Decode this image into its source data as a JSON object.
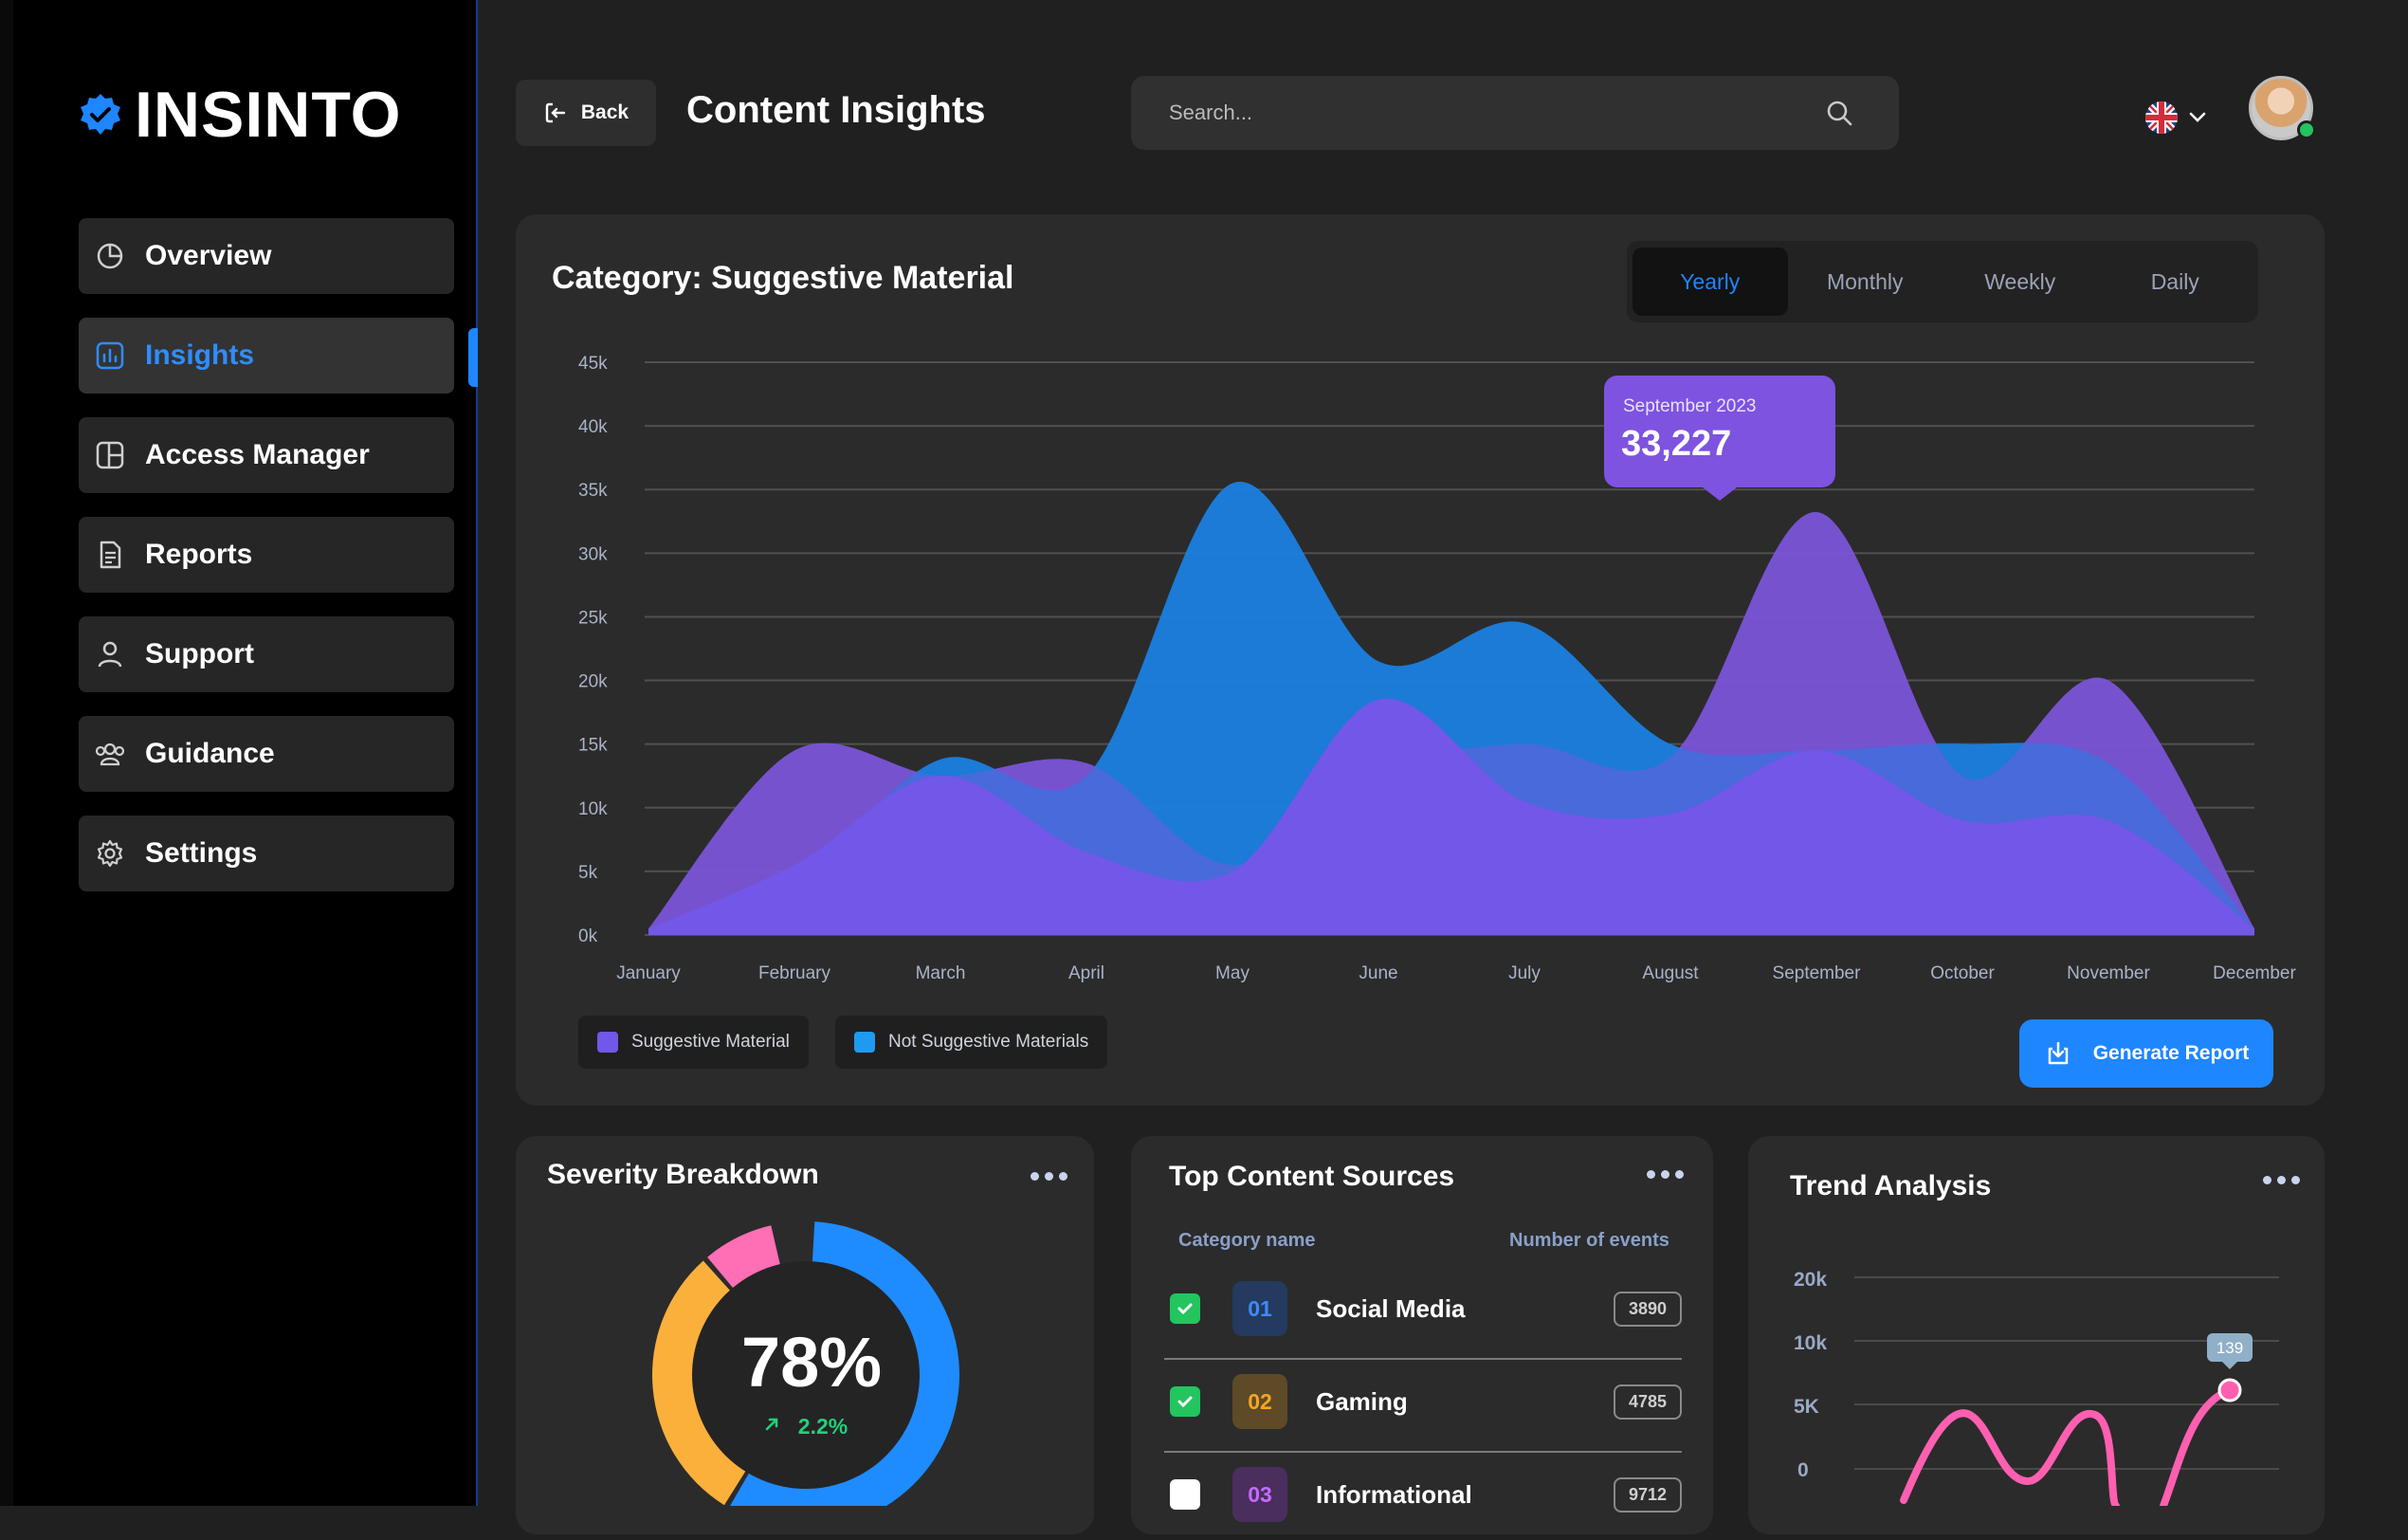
{
  "brand": {
    "name": "INSINTO"
  },
  "sidebar": {
    "items": [
      {
        "label": "Overview",
        "icon": "pie-chart-icon",
        "active": false
      },
      {
        "label": "Insights",
        "icon": "bar-chart-icon",
        "active": true
      },
      {
        "label": "Access Manager",
        "icon": "layout-icon",
        "active": false
      },
      {
        "label": "Reports",
        "icon": "document-icon",
        "active": false
      },
      {
        "label": "Support",
        "icon": "user-icon",
        "active": false
      },
      {
        "label": "Guidance",
        "icon": "users-icon",
        "active": false
      },
      {
        "label": "Settings",
        "icon": "gear-icon",
        "active": false
      }
    ]
  },
  "header": {
    "back_label": "Back",
    "title": "Content Insights",
    "search_placeholder": "Search...",
    "language": "UK flag"
  },
  "main_chart_card": {
    "title": "Category: Suggestive Material",
    "periods": [
      "Yearly",
      "Monthly",
      "Weekly",
      "Daily"
    ],
    "active_period": "Yearly",
    "tooltip": {
      "label": "September 2023",
      "value": "33,227"
    },
    "legend": [
      "Suggestive Material",
      "Not Suggestive Materials"
    ],
    "generate_label": "Generate Report"
  },
  "chart_data": {
    "type": "area",
    "categories": [
      "January",
      "February",
      "March",
      "April",
      "May",
      "June",
      "July",
      "August",
      "September",
      "October",
      "November",
      "December"
    ],
    "y_ticks": [
      "0k",
      "5k",
      "10k",
      "15k",
      "20k",
      "25k",
      "30k",
      "35k",
      "40k",
      "45k"
    ],
    "ylim": [
      0,
      45000
    ],
    "grid": true,
    "series": [
      {
        "name": "Suggestive Material",
        "color": "#7357e8",
        "values": [
          500,
          14500,
          12500,
          13500,
          5500,
          13000,
          15000,
          14000,
          33227,
          12500,
          20000,
          500
        ],
        "values_front": [
          500,
          5500,
          12500,
          6500,
          5000,
          18500,
          10500,
          9500,
          14500,
          9000,
          9000,
          500
        ]
      },
      {
        "name": "Not Suggestive Materials",
        "color": "#1a7fe0",
        "values": [
          500,
          4500,
          13800,
          12500,
          35500,
          21500,
          24500,
          15000,
          14500,
          15000,
          13500,
          500
        ]
      }
    ]
  },
  "severity_card": {
    "title": "Severity Breakdown",
    "percent": "78%",
    "change": "2.2%",
    "segments": [
      {
        "color": "#1e8bff",
        "share": 0.58
      },
      {
        "color": "#fbb03b",
        "share": 0.3
      },
      {
        "color": "#ff6fb5",
        "share": 0.08
      }
    ]
  },
  "sources_card": {
    "title": "Top Content Sources",
    "col_category": "Category name",
    "col_events": "Number of events",
    "rows": [
      {
        "num": "01",
        "name": "Social Media",
        "count": "3890",
        "checked": true,
        "color": "#3d8bff",
        "bg": "#243a5e"
      },
      {
        "num": "02",
        "name": "Gaming",
        "count": "4785",
        "checked": true,
        "color": "#f5a623",
        "bg": "#5e4a26"
      },
      {
        "num": "03",
        "name": "Informational",
        "count": "9712",
        "checked": false,
        "color": "#c46bff",
        "bg": "#4a2e5e"
      }
    ]
  },
  "trend_card": {
    "title": "Trend Analysis",
    "y_ticks": [
      "0",
      "5K",
      "10k",
      "20k"
    ],
    "tooltip_value": "139",
    "line_color": "#ff5fb0"
  }
}
